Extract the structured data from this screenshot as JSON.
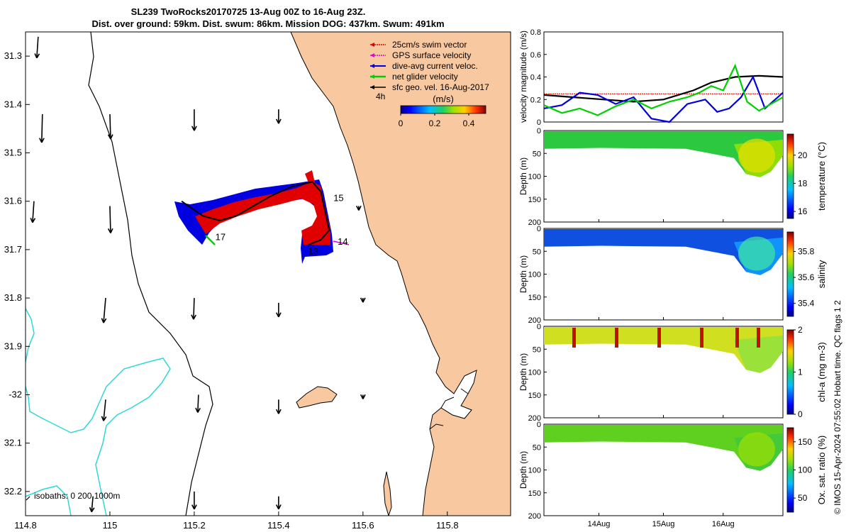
{
  "title": {
    "line1": "SL239 TwoRocks20170725 13-Aug 00Z to 16-Aug 23Z.",
    "line2": "Dist. over ground: 59km. Dist. swum: 86km. Mission DOG: 437km. Swum: 491km"
  },
  "colors": {
    "land": "#f8c8a0",
    "coast": "#000000",
    "isobath": "#2ed8d8",
    "swim_vector": "#e00000",
    "gps_velocity": "#e000e0",
    "dive_avg": "#0000e0",
    "net_velocity": "#00d000",
    "sfc_geo": "#000000"
  },
  "chart_data": [
    {
      "id": "map",
      "type": "scatter",
      "xlim": [
        114.8,
        115.95
      ],
      "ylim": [
        -32.25,
        -31.25
      ],
      "xticks": [
        114.8,
        115,
        115.2,
        115.4,
        115.6,
        115.8
      ],
      "xtick_labels": [
        "114.8",
        "115",
        "115.2",
        "115.4",
        "115.6",
        "115.8"
      ],
      "yticks": [
        -31.3,
        -31.4,
        -31.5,
        -31.6,
        -31.7,
        -31.8,
        -31.9,
        -32.0,
        -32.1,
        -32.2
      ],
      "ytick_labels": [
        "31.3",
        "31.4",
        "31.5",
        "31.6",
        "31.7",
        "31.8",
        "31.9",
        "-32",
        "32.1",
        "32.2"
      ],
      "legend": {
        "placement": "top-right",
        "entries": [
          {
            "label": "25cm/s swim vector",
            "color": "#e00000"
          },
          {
            "label": "GPS surface velocity",
            "color": "#e000e0"
          },
          {
            "label": "dive-avg current veloc.",
            "color": "#0000e0"
          },
          {
            "label": "net glider velocity",
            "color": "#00d000"
          },
          {
            "label": "sfc geo. vel. 16-Aug-2017",
            "color": "#000000"
          }
        ]
      },
      "colorbar": {
        "label": "(m/s)",
        "ticks": [
          "0",
          "0.2",
          "0.4"
        ],
        "range": [
          0,
          0.5
        ],
        "scale_label": "4h"
      },
      "isobaths_label": "isobaths: 0   200  1000m",
      "track_labels": [
        {
          "text": "15",
          "x": 115.53,
          "y": -31.6
        },
        {
          "text": "14",
          "x": 115.54,
          "y": -31.69
        },
        {
          "text": "17",
          "x": 115.25,
          "y": -31.68
        },
        {
          "text": "13",
          "x": 115.47,
          "y": -31.71
        }
      ],
      "track": [
        [
          115.17,
          -31.6
        ],
        [
          115.22,
          -31.63
        ],
        [
          115.26,
          -31.64
        ],
        [
          115.3,
          -31.63
        ],
        [
          115.34,
          -31.61
        ],
        [
          115.38,
          -31.59
        ],
        [
          115.43,
          -31.57
        ],
        [
          115.48,
          -31.56
        ],
        [
          115.5,
          -31.58
        ],
        [
          115.51,
          -31.62
        ],
        [
          115.52,
          -31.66
        ],
        [
          115.5,
          -31.68
        ],
        [
          115.47,
          -31.69
        ]
      ],
      "vectors": [
        {
          "x": 114.83,
          "y": -31.26,
          "u": -0.02,
          "v": -0.3
        },
        {
          "x": 114.84,
          "y": -31.42,
          "u": -0.01,
          "v": -0.4
        },
        {
          "x": 114.82,
          "y": -31.6,
          "u": -0.02,
          "v": -0.3
        },
        {
          "x": 115.0,
          "y": -31.42,
          "u": 0.01,
          "v": -0.35
        },
        {
          "x": 115.0,
          "y": -31.61,
          "u": 0.01,
          "v": -0.38
        },
        {
          "x": 114.99,
          "y": -31.8,
          "u": -0.03,
          "v": -0.35
        },
        {
          "x": 114.99,
          "y": -32.01,
          "u": -0.03,
          "v": -0.3
        },
        {
          "x": 114.96,
          "y": -32.21,
          "u": -0.02,
          "v": -0.22
        },
        {
          "x": 115.2,
          "y": -31.41,
          "u": 0.0,
          "v": -0.3
        },
        {
          "x": 115.2,
          "y": -31.8,
          "u": -0.01,
          "v": -0.3
        },
        {
          "x": 115.21,
          "y": -32.0,
          "u": -0.01,
          "v": -0.25
        },
        {
          "x": 115.2,
          "y": -32.2,
          "u": 0.0,
          "v": -0.25
        },
        {
          "x": 115.4,
          "y": -31.41,
          "u": 0.0,
          "v": -0.2
        },
        {
          "x": 115.4,
          "y": -31.81,
          "u": 0.0,
          "v": -0.2
        },
        {
          "x": 115.4,
          "y": -32.01,
          "u": 0.0,
          "v": -0.2
        },
        {
          "x": 115.4,
          "y": -32.21,
          "u": 0.0,
          "v": -0.18
        },
        {
          "x": 115.6,
          "y": -31.8,
          "u": 0.0,
          "v": -0.06
        },
        {
          "x": 115.6,
          "y": -32.0,
          "u": 0.0,
          "v": -0.06
        },
        {
          "x": 115.59,
          "y": -31.61,
          "u": 0.0,
          "v": -0.06
        }
      ]
    },
    {
      "id": "velocity",
      "type": "line",
      "ylabel": "velocity magnitude (m/s)",
      "ylim": [
        0,
        0.8
      ],
      "yticks": [
        "0",
        "0.2",
        "0.4",
        "0.6",
        "0.8"
      ],
      "xlim": [
        0,
        4
      ],
      "series": [
        {
          "color": "#e00000",
          "x": [
            0,
            4
          ],
          "y": [
            0.25,
            0.25
          ]
        },
        {
          "color": "#000000",
          "x": [
            0,
            0.5,
            1.0,
            1.5,
            2.0,
            2.5,
            2.8,
            3.2,
            3.6,
            4.0
          ],
          "y": [
            0.24,
            0.22,
            0.2,
            0.18,
            0.2,
            0.28,
            0.35,
            0.4,
            0.41,
            0.4
          ]
        },
        {
          "color": "#0000e0",
          "x": [
            0,
            0.3,
            0.6,
            0.9,
            1.2,
            1.5,
            1.8,
            2.1,
            2.4,
            2.7,
            2.9,
            3.1,
            3.3,
            3.5,
            3.7,
            4.0
          ],
          "y": [
            0.12,
            0.15,
            0.26,
            0.24,
            0.16,
            0.22,
            0.03,
            0.0,
            0.16,
            0.2,
            0.09,
            0.12,
            0.22,
            0.4,
            0.12,
            0.26
          ]
        },
        {
          "color": "#00d000",
          "x": [
            0,
            0.3,
            0.6,
            0.9,
            1.2,
            1.5,
            1.8,
            2.1,
            2.4,
            2.6,
            2.8,
            3.0,
            3.2,
            3.4,
            3.6,
            3.8,
            4.0
          ],
          "y": [
            0.15,
            0.08,
            0.12,
            0.06,
            0.14,
            0.2,
            0.12,
            0.18,
            0.22,
            0.26,
            0.32,
            0.28,
            0.5,
            0.18,
            0.1,
            0.16,
            0.22
          ]
        }
      ]
    },
    {
      "id": "temperature",
      "type": "heatmap",
      "ylabel": "Depth (m)",
      "clabel": "temperature (°C)",
      "ylim": [
        0,
        200
      ],
      "yticks": [
        "0",
        "50",
        "100",
        "150",
        "200"
      ],
      "cticks": [
        "16",
        "18",
        "20"
      ],
      "crange": [
        15.5,
        21.5
      ]
    },
    {
      "id": "salinity",
      "type": "heatmap",
      "ylabel": "Depth (m)",
      "clabel": "salinity",
      "ylim": [
        0,
        200
      ],
      "yticks": [
        "0",
        "50",
        "100",
        "150",
        "200"
      ],
      "cticks": [
        "35.4",
        "35.6",
        "35.8"
      ],
      "crange": [
        35.3,
        35.95
      ]
    },
    {
      "id": "chla",
      "type": "heatmap",
      "ylabel": "Depth (m)",
      "clabel": "chl-a (mg m-3)",
      "ylim": [
        0,
        200
      ],
      "yticks": [
        "0",
        "50",
        "100",
        "150",
        "200"
      ],
      "cticks": [
        "0",
        "1",
        "2"
      ],
      "crange": [
        0,
        2
      ]
    },
    {
      "id": "oxygen",
      "type": "heatmap",
      "ylabel": "Depth (m)",
      "clabel": "Ox. sat. ratio (%)",
      "ylim": [
        0,
        200
      ],
      "yticks": [
        "0",
        "50",
        "100",
        "150",
        "200"
      ],
      "cticks": [
        "50",
        "100",
        "150"
      ],
      "crange": [
        25,
        175
      ],
      "xtick_labels": [
        "14Aug",
        "15Aug",
        "16Aug"
      ]
    }
  ],
  "side_note": "© IMOS 15-Apr-2024 07:55:02 Hobart time. QC flags 1  2"
}
